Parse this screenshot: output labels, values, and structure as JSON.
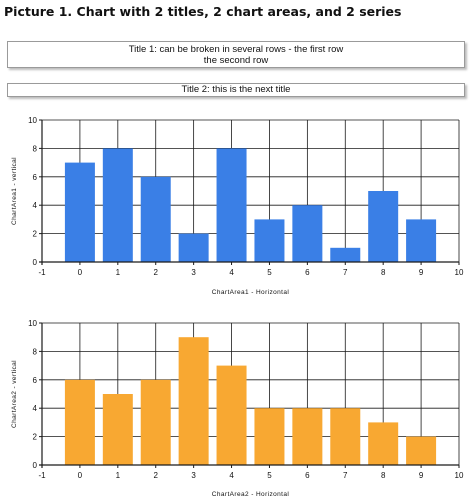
{
  "heading": "Picture 1. Chart with 2 titles, 2 chart areas, and 2 series",
  "titles": {
    "title1_line1": "Title 1: can be broken in several rows - the first row",
    "title1_line2": "the second row",
    "title2": "Title 2: this is the next title"
  },
  "colors": {
    "series1": "#3a7fe6",
    "series2": "#f8a832",
    "grid": "#1a1a1a"
  },
  "chart_data": [
    {
      "type": "bar",
      "area": "ChartArea1",
      "x": [
        0,
        1,
        2,
        3,
        4,
        5,
        6,
        7,
        8,
        9
      ],
      "values": [
        7,
        8,
        6,
        2,
        8,
        3,
        4,
        1,
        5,
        3
      ],
      "xlabel": "ChartArea1 - Horizontal",
      "ylabel": "ChartArea1 - vertical",
      "xlim": [
        -1,
        10
      ],
      "ylim": [
        0,
        10
      ],
      "xticks": [
        "-1",
        "0",
        "1",
        "2",
        "3",
        "4",
        "5",
        "6",
        "7",
        "8",
        "9",
        "10"
      ],
      "yticks": [
        "0",
        "2",
        "4",
        "6",
        "8",
        "10"
      ],
      "grid": true,
      "color": "#3a7fe6"
    },
    {
      "type": "bar",
      "area": "ChartArea2",
      "x": [
        0,
        1,
        2,
        3,
        4,
        5,
        6,
        7,
        8,
        9
      ],
      "values": [
        6,
        5,
        6,
        9,
        7,
        4,
        4,
        4,
        3,
        2
      ],
      "xlabel": "ChartArea2 - Horizontal",
      "ylabel": "ChartArea2 - vertical",
      "xlim": [
        -1,
        10
      ],
      "ylim": [
        0,
        10
      ],
      "xticks": [
        "-1",
        "0",
        "1",
        "2",
        "3",
        "4",
        "5",
        "6",
        "7",
        "8",
        "9",
        "10"
      ],
      "yticks": [
        "0",
        "2",
        "4",
        "6",
        "8",
        "10"
      ],
      "grid": true,
      "color": "#f8a832"
    }
  ]
}
